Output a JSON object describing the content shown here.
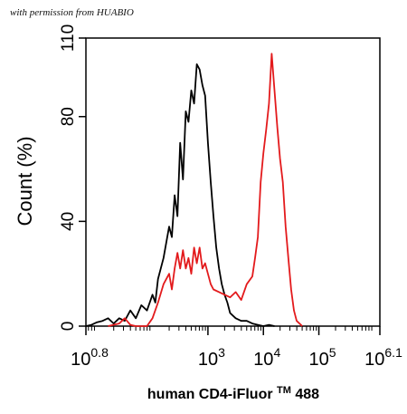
{
  "watermark": "with permission from HUABIO",
  "chart_data": {
    "type": "histogram",
    "xlabel_main": "human CD4-iFluor",
    "xlabel_sup": "TM",
    "xlabel_end": "488",
    "ylabel": "Count  (%)",
    "x_scale": "log10",
    "xlim": [
      0.8,
      6.1
    ],
    "ylim": [
      0,
      110
    ],
    "y_ticks": [
      0,
      40,
      80,
      110
    ],
    "x_ticks": [
      {
        "base": "10",
        "exp": "0.8",
        "value": 0.8
      },
      {
        "base": "10",
        "exp": "3",
        "value": 3
      },
      {
        "base": "10",
        "exp": "4",
        "value": 4
      },
      {
        "base": "10",
        "exp": "5",
        "value": 5
      },
      {
        "base": "10",
        "exp": "6.1",
        "value": 6.1
      }
    ],
    "series": [
      {
        "color": "#000000",
        "points": [
          [
            0.8,
            0
          ],
          [
            0.9,
            0.5
          ],
          [
            1.0,
            1.5
          ],
          [
            1.1,
            2
          ],
          [
            1.2,
            3
          ],
          [
            1.3,
            1
          ],
          [
            1.4,
            3
          ],
          [
            1.5,
            2
          ],
          [
            1.6,
            6
          ],
          [
            1.7,
            3
          ],
          [
            1.8,
            8
          ],
          [
            1.9,
            6
          ],
          [
            2.0,
            12
          ],
          [
            2.05,
            9
          ],
          [
            2.1,
            18
          ],
          [
            2.2,
            26
          ],
          [
            2.3,
            38
          ],
          [
            2.35,
            34
          ],
          [
            2.4,
            50
          ],
          [
            2.45,
            42
          ],
          [
            2.5,
            70
          ],
          [
            2.55,
            56
          ],
          [
            2.6,
            82
          ],
          [
            2.65,
            78
          ],
          [
            2.7,
            90
          ],
          [
            2.75,
            85
          ],
          [
            2.8,
            100
          ],
          [
            2.85,
            98
          ],
          [
            2.9,
            92
          ],
          [
            2.95,
            88
          ],
          [
            3.0,
            70
          ],
          [
            3.05,
            55
          ],
          [
            3.1,
            42
          ],
          [
            3.15,
            30
          ],
          [
            3.2,
            22
          ],
          [
            3.25,
            16
          ],
          [
            3.3,
            12
          ],
          [
            3.35,
            9
          ],
          [
            3.4,
            5
          ],
          [
            3.5,
            3
          ],
          [
            3.6,
            2
          ],
          [
            3.7,
            2
          ],
          [
            3.8,
            1
          ],
          [
            3.9,
            0.5
          ],
          [
            4.0,
            0
          ],
          [
            4.1,
            0.5
          ],
          [
            4.2,
            0
          ]
        ]
      },
      {
        "color": "#e31a1c",
        "points": [
          [
            1.2,
            0
          ],
          [
            1.4,
            1
          ],
          [
            1.5,
            3
          ],
          [
            1.6,
            0.5
          ],
          [
            1.7,
            0
          ],
          [
            1.9,
            0
          ],
          [
            2.0,
            3
          ],
          [
            2.1,
            9
          ],
          [
            2.2,
            16
          ],
          [
            2.3,
            20
          ],
          [
            2.35,
            14
          ],
          [
            2.4,
            22
          ],
          [
            2.45,
            28
          ],
          [
            2.5,
            22
          ],
          [
            2.55,
            29
          ],
          [
            2.6,
            22
          ],
          [
            2.65,
            26
          ],
          [
            2.7,
            20
          ],
          [
            2.75,
            30
          ],
          [
            2.8,
            24
          ],
          [
            2.85,
            30
          ],
          [
            2.9,
            22
          ],
          [
            2.95,
            24
          ],
          [
            3.0,
            20
          ],
          [
            3.05,
            16
          ],
          [
            3.1,
            14
          ],
          [
            3.2,
            13
          ],
          [
            3.3,
            12
          ],
          [
            3.4,
            11
          ],
          [
            3.5,
            13
          ],
          [
            3.6,
            10
          ],
          [
            3.7,
            16
          ],
          [
            3.8,
            19
          ],
          [
            3.85,
            26
          ],
          [
            3.9,
            34
          ],
          [
            3.95,
            55
          ],
          [
            4.0,
            66
          ],
          [
            4.05,
            75
          ],
          [
            4.1,
            85
          ],
          [
            4.15,
            104
          ],
          [
            4.2,
            90
          ],
          [
            4.25,
            76
          ],
          [
            4.3,
            64
          ],
          [
            4.35,
            55
          ],
          [
            4.4,
            38
          ],
          [
            4.45,
            26
          ],
          [
            4.5,
            14
          ],
          [
            4.55,
            6
          ],
          [
            4.6,
            2
          ],
          [
            4.7,
            0
          ]
        ]
      }
    ]
  }
}
